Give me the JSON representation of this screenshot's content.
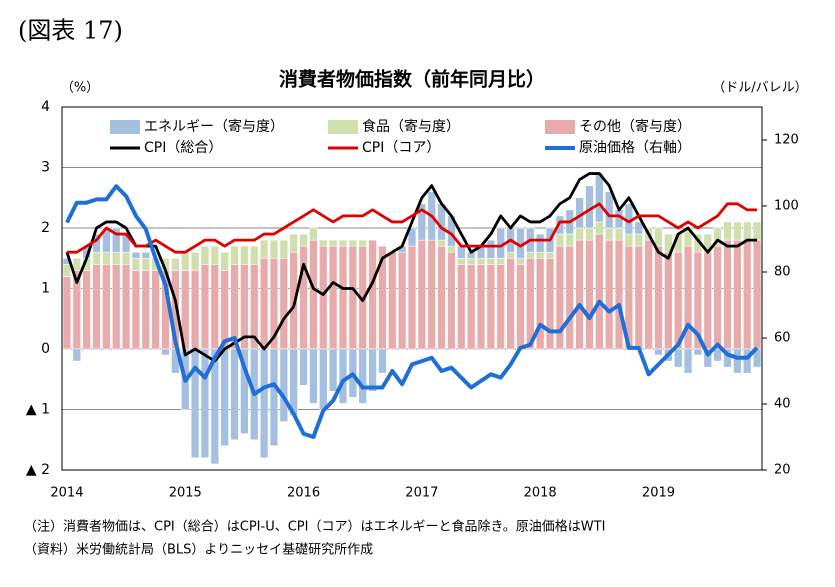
{
  "chart_data": {
    "type": "bar",
    "figure_label": "(図表 17)",
    "title": "消費者物価指数（前年同月比）",
    "ylabel": "（%）",
    "y2label": "（ドル/バレル）",
    "categories": [
      "2014",
      null,
      null,
      null,
      null,
      null,
      null,
      null,
      null,
      null,
      null,
      null,
      "2015",
      null,
      null,
      null,
      null,
      null,
      null,
      null,
      null,
      null,
      null,
      null,
      "2016",
      null,
      null,
      null,
      null,
      null,
      null,
      null,
      null,
      null,
      null,
      null,
      "2017",
      null,
      null,
      null,
      null,
      null,
      null,
      null,
      null,
      null,
      null,
      null,
      "2018",
      null,
      null,
      null,
      null,
      null,
      null,
      null,
      null,
      null,
      null,
      null,
      "2019",
      null,
      null,
      null,
      null,
      null,
      null,
      null,
      null,
      null,
      null
    ],
    "series": [
      {
        "name": "エネルギー（寄与度）",
        "type": "bar",
        "color": "#a4bfe0",
        "values": [
          0.1,
          -0.2,
          0.2,
          0.3,
          0.4,
          0.4,
          0.3,
          0.1,
          0.1,
          0.0,
          -0.1,
          -0.4,
          -1.0,
          -1.8,
          -1.8,
          -1.9,
          -1.6,
          -1.5,
          -1.4,
          -1.5,
          -1.8,
          -1.6,
          -1.2,
          -1.1,
          -0.6,
          -0.9,
          -1.0,
          -0.7,
          -0.9,
          -0.8,
          -0.9,
          -0.7,
          -0.4,
          0.0,
          0.1,
          0.3,
          0.6,
          0.8,
          0.6,
          0.5,
          0.2,
          0.1,
          0.2,
          0.3,
          0.5,
          0.4,
          0.5,
          0.4,
          0.3,
          0.4,
          0.3,
          0.4,
          0.5,
          0.7,
          0.8,
          0.6,
          0.3,
          0.5,
          0.2,
          0.0,
          -0.1,
          -0.2,
          -0.3,
          -0.4,
          -0.1,
          -0.3,
          -0.2,
          -0.3,
          -0.4,
          -0.4,
          -0.3
        ]
      },
      {
        "name": "食品（寄与度）",
        "type": "bar",
        "color": "#cfdfae",
        "values": [
          0.2,
          0.2,
          0.2,
          0.2,
          0.2,
          0.2,
          0.2,
          0.2,
          0.2,
          0.2,
          0.2,
          0.2,
          0.3,
          0.3,
          0.3,
          0.3,
          0.3,
          0.3,
          0.3,
          0.3,
          0.3,
          0.3,
          0.3,
          0.3,
          0.2,
          0.2,
          0.1,
          0.1,
          0.1,
          0.1,
          0.1,
          0.0,
          0.0,
          0.0,
          0.0,
          0.0,
          0.0,
          0.0,
          0.1,
          0.1,
          0.1,
          0.1,
          0.1,
          0.1,
          0.1,
          0.1,
          0.1,
          0.1,
          0.1,
          0.1,
          0.2,
          0.2,
          0.2,
          0.2,
          0.2,
          0.2,
          0.2,
          0.2,
          0.2,
          0.2,
          0.3,
          0.3,
          0.3,
          0.3,
          0.3,
          0.3,
          0.3,
          0.3,
          0.3,
          0.3,
          0.3
        ]
      },
      {
        "name": "その他（寄与度）",
        "type": "bar",
        "color": "#e8abab",
        "values": [
          1.2,
          1.3,
          1.3,
          1.4,
          1.4,
          1.4,
          1.4,
          1.3,
          1.3,
          1.3,
          1.3,
          1.3,
          1.3,
          1.3,
          1.4,
          1.4,
          1.3,
          1.4,
          1.4,
          1.4,
          1.5,
          1.5,
          1.5,
          1.6,
          1.7,
          1.8,
          1.7,
          1.7,
          1.7,
          1.7,
          1.7,
          1.8,
          1.7,
          1.6,
          1.6,
          1.7,
          1.8,
          1.8,
          1.7,
          1.6,
          1.4,
          1.4,
          1.4,
          1.4,
          1.4,
          1.5,
          1.4,
          1.5,
          1.5,
          1.5,
          1.7,
          1.7,
          1.8,
          1.8,
          1.9,
          1.8,
          1.8,
          1.7,
          1.7,
          1.8,
          1.7,
          1.6,
          1.6,
          1.7,
          1.6,
          1.6,
          1.7,
          1.8,
          1.8,
          1.8,
          1.8
        ]
      },
      {
        "name": "CPI（総合）",
        "type": "line",
        "color": "#000000",
        "values": [
          1.6,
          1.1,
          1.5,
          2.0,
          2.1,
          2.1,
          2.0,
          1.7,
          1.7,
          1.7,
          1.3,
          0.8,
          -0.1,
          0.0,
          -0.1,
          -0.2,
          0.0,
          0.1,
          0.2,
          0.2,
          0.0,
          0.2,
          0.5,
          0.7,
          1.4,
          1.0,
          0.9,
          1.1,
          1.0,
          1.0,
          0.8,
          1.1,
          1.5,
          1.6,
          1.7,
          2.1,
          2.5,
          2.7,
          2.4,
          2.2,
          1.9,
          1.6,
          1.7,
          1.9,
          2.2,
          2.0,
          2.2,
          2.1,
          2.1,
          2.2,
          2.4,
          2.5,
          2.8,
          2.9,
          2.9,
          2.7,
          2.3,
          2.5,
          2.2,
          1.9,
          1.6,
          1.5,
          1.9,
          2.0,
          1.8,
          1.6,
          1.8,
          1.7,
          1.7,
          1.8,
          1.8
        ]
      },
      {
        "name": "CPI（コア）",
        "type": "line",
        "color": "#e00000",
        "values": [
          1.6,
          1.6,
          1.7,
          1.8,
          2.0,
          1.9,
          1.9,
          1.7,
          1.7,
          1.8,
          1.7,
          1.6,
          1.6,
          1.7,
          1.8,
          1.8,
          1.7,
          1.8,
          1.8,
          1.8,
          1.9,
          1.9,
          2.0,
          2.1,
          2.2,
          2.3,
          2.2,
          2.1,
          2.2,
          2.2,
          2.2,
          2.3,
          2.2,
          2.1,
          2.1,
          2.2,
          2.3,
          2.2,
          2.0,
          1.9,
          1.7,
          1.7,
          1.7,
          1.7,
          1.7,
          1.8,
          1.7,
          1.8,
          1.8,
          1.8,
          2.1,
          2.1,
          2.2,
          2.3,
          2.4,
          2.2,
          2.2,
          2.1,
          2.2,
          2.2,
          2.2,
          2.1,
          2.0,
          2.1,
          2.0,
          2.1,
          2.2,
          2.4,
          2.4,
          2.3,
          2.3
        ]
      },
      {
        "name": "原油価格（右軸）",
        "type": "line",
        "axis": "y2",
        "color": "#1f6fd6",
        "values": [
          95,
          101,
          101,
          102,
          102,
          106,
          103,
          97,
          93,
          84,
          76,
          59,
          47,
          51,
          48,
          54,
          59,
          60,
          51,
          43,
          45,
          46,
          42,
          37,
          31,
          30,
          38,
          41,
          47,
          49,
          45,
          45,
          45,
          50,
          46,
          52,
          53,
          54,
          50,
          51,
          48,
          45,
          47,
          49,
          48,
          52,
          57,
          58,
          64,
          62,
          62,
          66,
          70,
          66,
          71,
          68,
          70,
          57,
          57,
          49,
          52,
          55,
          58,
          64,
          61,
          55,
          58,
          55,
          54,
          54,
          57
        ]
      }
    ],
    "ylim": [
      -2,
      4
    ],
    "yticks": [
      {
        "value": -2,
        "label": "▲ 2"
      },
      {
        "value": -1,
        "label": "▲ 1"
      },
      0,
      1,
      2,
      3,
      4
    ],
    "y2lim": [
      20,
      130
    ],
    "y2ticks": [
      20,
      40,
      60,
      80,
      100,
      120
    ],
    "grid": true,
    "notes": [
      "（注）消費者物価は、CPI（総合）はCPI-U、CPI（コア）はエネルギーと食品除き。原油価格はWTI",
      "（資料）米労働統計局（BLS）よりニッセイ基礎研究所作成"
    ]
  }
}
